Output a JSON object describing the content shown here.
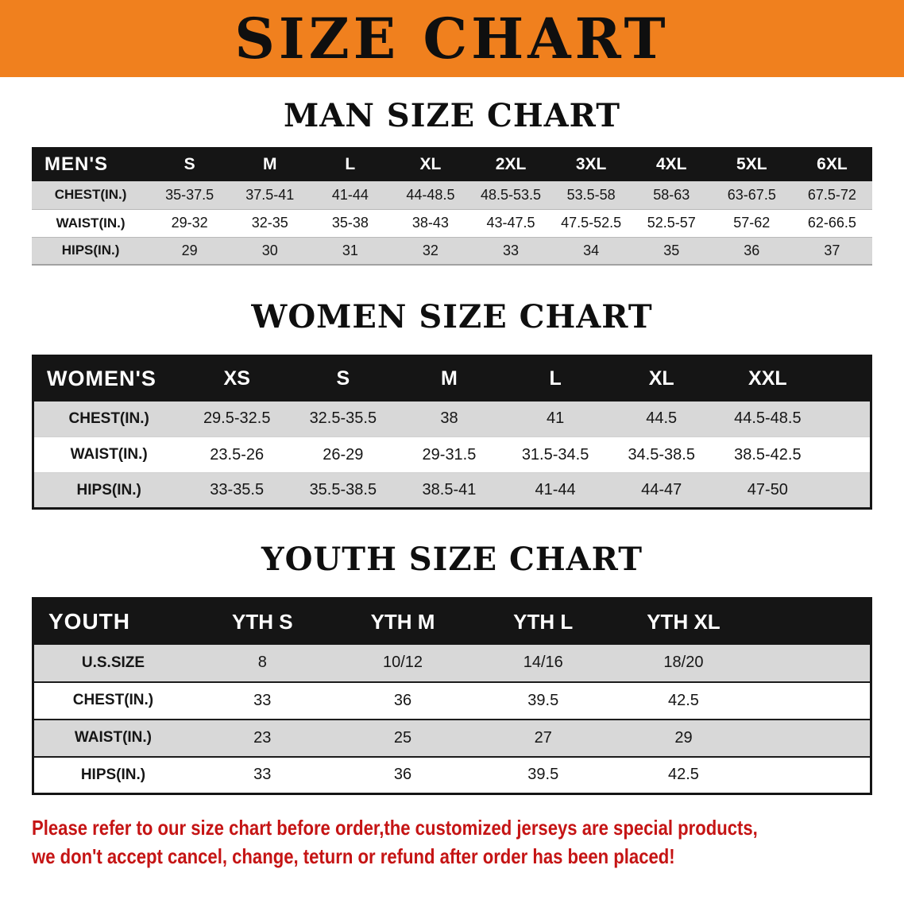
{
  "banner": {
    "title": "SIZE CHART"
  },
  "colors": {
    "banner_bg": "#f0801e",
    "table_header_bg": "#151515",
    "table_header_text": "#ffffff",
    "row_alt_bg": "#d8d8d8",
    "heading_text": "#0f0f0f",
    "disclaimer_text": "#c51414"
  },
  "sections": {
    "men": {
      "heading": "MAN SIZE CHART",
      "table": {
        "header": [
          "MEN'S",
          "S",
          "M",
          "L",
          "XL",
          "2XL",
          "3XL",
          "4XL",
          "5XL",
          "6XL"
        ],
        "rows": [
          [
            "CHEST(IN.)",
            "35-37.5",
            "37.5-41",
            "41-44",
            "44-48.5",
            "48.5-53.5",
            "53.5-58",
            "58-63",
            "63-67.5",
            "67.5-72"
          ],
          [
            "WAIST(IN.)",
            "29-32",
            "32-35",
            "35-38",
            "38-43",
            "43-47.5",
            "47.5-52.5",
            "52.5-57",
            "57-62",
            "62-66.5"
          ],
          [
            "HIPS(IN.)",
            "29",
            "30",
            "31",
            "32",
            "33",
            "34",
            "35",
            "36",
            "37"
          ]
        ]
      }
    },
    "women": {
      "heading": "WOMEN SIZE CHART",
      "table": {
        "header": [
          "WOMEN'S",
          "XS",
          "S",
          "M",
          "L",
          "XL",
          "XXL"
        ],
        "rows": [
          [
            "CHEST(IN.)",
            "29.5-32.5",
            "32.5-35.5",
            "38",
            "41",
            "44.5",
            "44.5-48.5"
          ],
          [
            "WAIST(IN.)",
            "23.5-26",
            "26-29",
            "29-31.5",
            "31.5-34.5",
            "34.5-38.5",
            "38.5-42.5"
          ],
          [
            "HIPS(IN.)",
            "33-35.5",
            "35.5-38.5",
            "38.5-41",
            "41-44",
            "44-47",
            "47-50"
          ]
        ]
      }
    },
    "youth": {
      "heading": "YOUTH SIZE CHART",
      "table": {
        "header": [
          "YOUTH",
          "YTH S",
          "YTH M",
          "YTH L",
          "YTH XL"
        ],
        "rows": [
          [
            "U.S.SIZE",
            "8",
            "10/12",
            "14/16",
            "18/20"
          ],
          [
            "CHEST(IN.)",
            "33",
            "36",
            "39.5",
            "42.5"
          ],
          [
            "WAIST(IN.)",
            "23",
            "25",
            "27",
            "29"
          ],
          [
            "HIPS(IN.)",
            "33",
            "36",
            "39.5",
            "42.5"
          ]
        ]
      }
    }
  },
  "disclaimer": {
    "line1": "Please refer to our size chart before order,the customized jerseys are special products,",
    "line2": "we don't accept cancel, change, teturn or refund after order has been placed!"
  }
}
